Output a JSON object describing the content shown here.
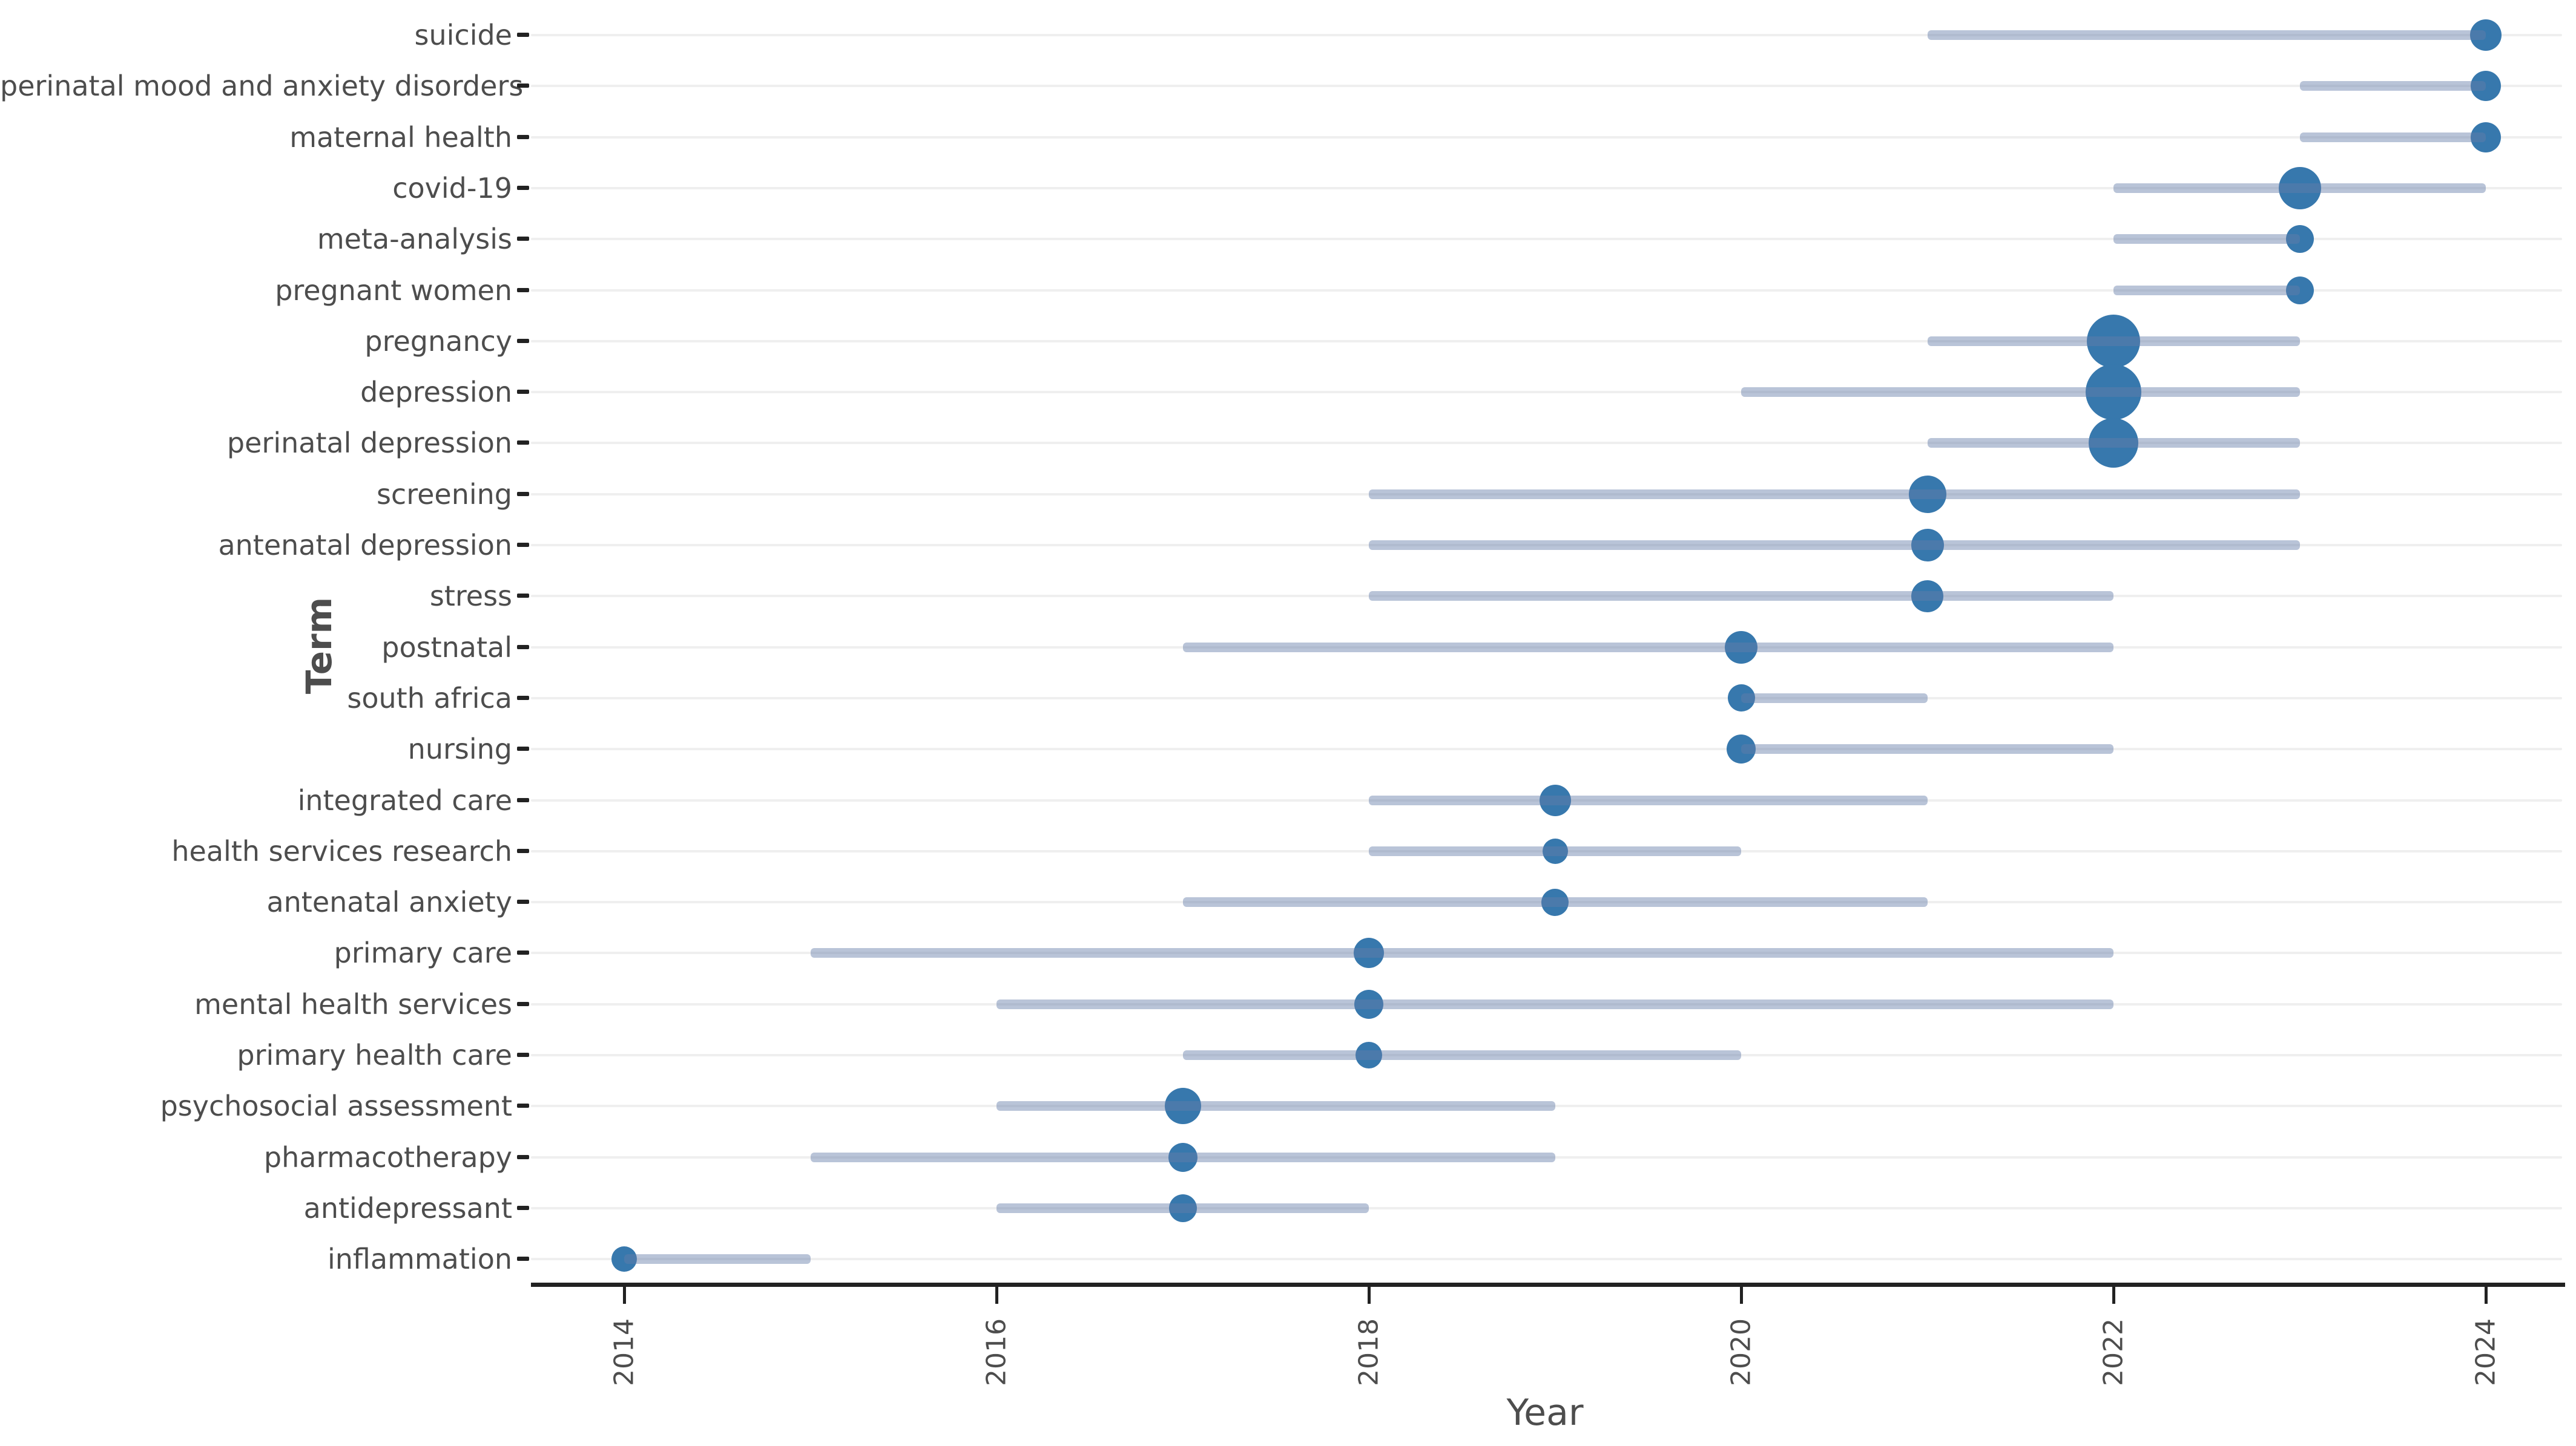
{
  "chart_data": {
    "type": "scatter",
    "subtype": "trend-topics-dot-range",
    "title": "",
    "xlabel": "Year",
    "ylabel": "Term",
    "x_ticks": [
      "2014",
      "2016",
      "2018",
      "2020",
      "2022",
      "2024"
    ],
    "xlim": [
      2013.5,
      2024.7
    ],
    "grid": "horizontal-only",
    "legend_position": "none",
    "colors": {
      "dot": "#3778ad",
      "range_line": "rgba(100,124,168,0.45)",
      "gridline": "#efefef",
      "axis_line": "#222222",
      "text": "#4d4d4d"
    },
    "terms": [
      {
        "label": "suicide",
        "year_start": 2021,
        "year_dot": 2024,
        "year_end": 2024,
        "dot_size": 52
      },
      {
        "label": "perinatal mood and anxiety disorders",
        "year_start": 2023,
        "year_dot": 2024,
        "year_end": 2024,
        "dot_size": 50
      },
      {
        "label": "maternal health",
        "year_start": 2023,
        "year_dot": 2024,
        "year_end": 2024,
        "dot_size": 50
      },
      {
        "label": "covid-19",
        "year_start": 2022,
        "year_dot": 2023,
        "year_end": 2024,
        "dot_size": 70
      },
      {
        "label": "meta-analysis",
        "year_start": 2022,
        "year_dot": 2023,
        "year_end": 2023,
        "dot_size": 46
      },
      {
        "label": "pregnant women",
        "year_start": 2022,
        "year_dot": 2023,
        "year_end": 2023,
        "dot_size": 46
      },
      {
        "label": "pregnancy",
        "year_start": 2021,
        "year_dot": 2022,
        "year_end": 2023,
        "dot_size": 88
      },
      {
        "label": "depression",
        "year_start": 2020,
        "year_dot": 2022,
        "year_end": 2023,
        "dot_size": 92
      },
      {
        "label": "perinatal depression",
        "year_start": 2021,
        "year_dot": 2022,
        "year_end": 2023,
        "dot_size": 82
      },
      {
        "label": "screening",
        "year_start": 2018,
        "year_dot": 2021,
        "year_end": 2023,
        "dot_size": 62
      },
      {
        "label": "antenatal depression",
        "year_start": 2018,
        "year_dot": 2021,
        "year_end": 2023,
        "dot_size": 54
      },
      {
        "label": "stress",
        "year_start": 2018,
        "year_dot": 2021,
        "year_end": 2022,
        "dot_size": 53
      },
      {
        "label": "postnatal",
        "year_start": 2017,
        "year_dot": 2020,
        "year_end": 2022,
        "dot_size": 54
      },
      {
        "label": "south africa",
        "year_start": 2020,
        "year_dot": 2020,
        "year_end": 2021,
        "dot_size": 45
      },
      {
        "label": "nursing",
        "year_start": 2020,
        "year_dot": 2020,
        "year_end": 2022,
        "dot_size": 48
      },
      {
        "label": "integrated care",
        "year_start": 2018,
        "year_dot": 2019,
        "year_end": 2021,
        "dot_size": 52
      },
      {
        "label": "health services research",
        "year_start": 2018,
        "year_dot": 2019,
        "year_end": 2020,
        "dot_size": 42
      },
      {
        "label": "antenatal anxiety",
        "year_start": 2017,
        "year_dot": 2019,
        "year_end": 2021,
        "dot_size": 45
      },
      {
        "label": "primary care",
        "year_start": 2015,
        "year_dot": 2018,
        "year_end": 2022,
        "dot_size": 50
      },
      {
        "label": "mental health services",
        "year_start": 2016,
        "year_dot": 2018,
        "year_end": 2022,
        "dot_size": 48
      },
      {
        "label": "primary health care",
        "year_start": 2017,
        "year_dot": 2018,
        "year_end": 2020,
        "dot_size": 44
      },
      {
        "label": "psychosocial assessment",
        "year_start": 2016,
        "year_dot": 2017,
        "year_end": 2019,
        "dot_size": 60
      },
      {
        "label": "pharmacotherapy",
        "year_start": 2015,
        "year_dot": 2017,
        "year_end": 2019,
        "dot_size": 48
      },
      {
        "label": "antidepressant",
        "year_start": 2016,
        "year_dot": 2017,
        "year_end": 2018,
        "dot_size": 46
      },
      {
        "label": "inflammation",
        "year_start": 2014,
        "year_dot": 2014,
        "year_end": 2015,
        "dot_size": 42
      }
    ]
  }
}
